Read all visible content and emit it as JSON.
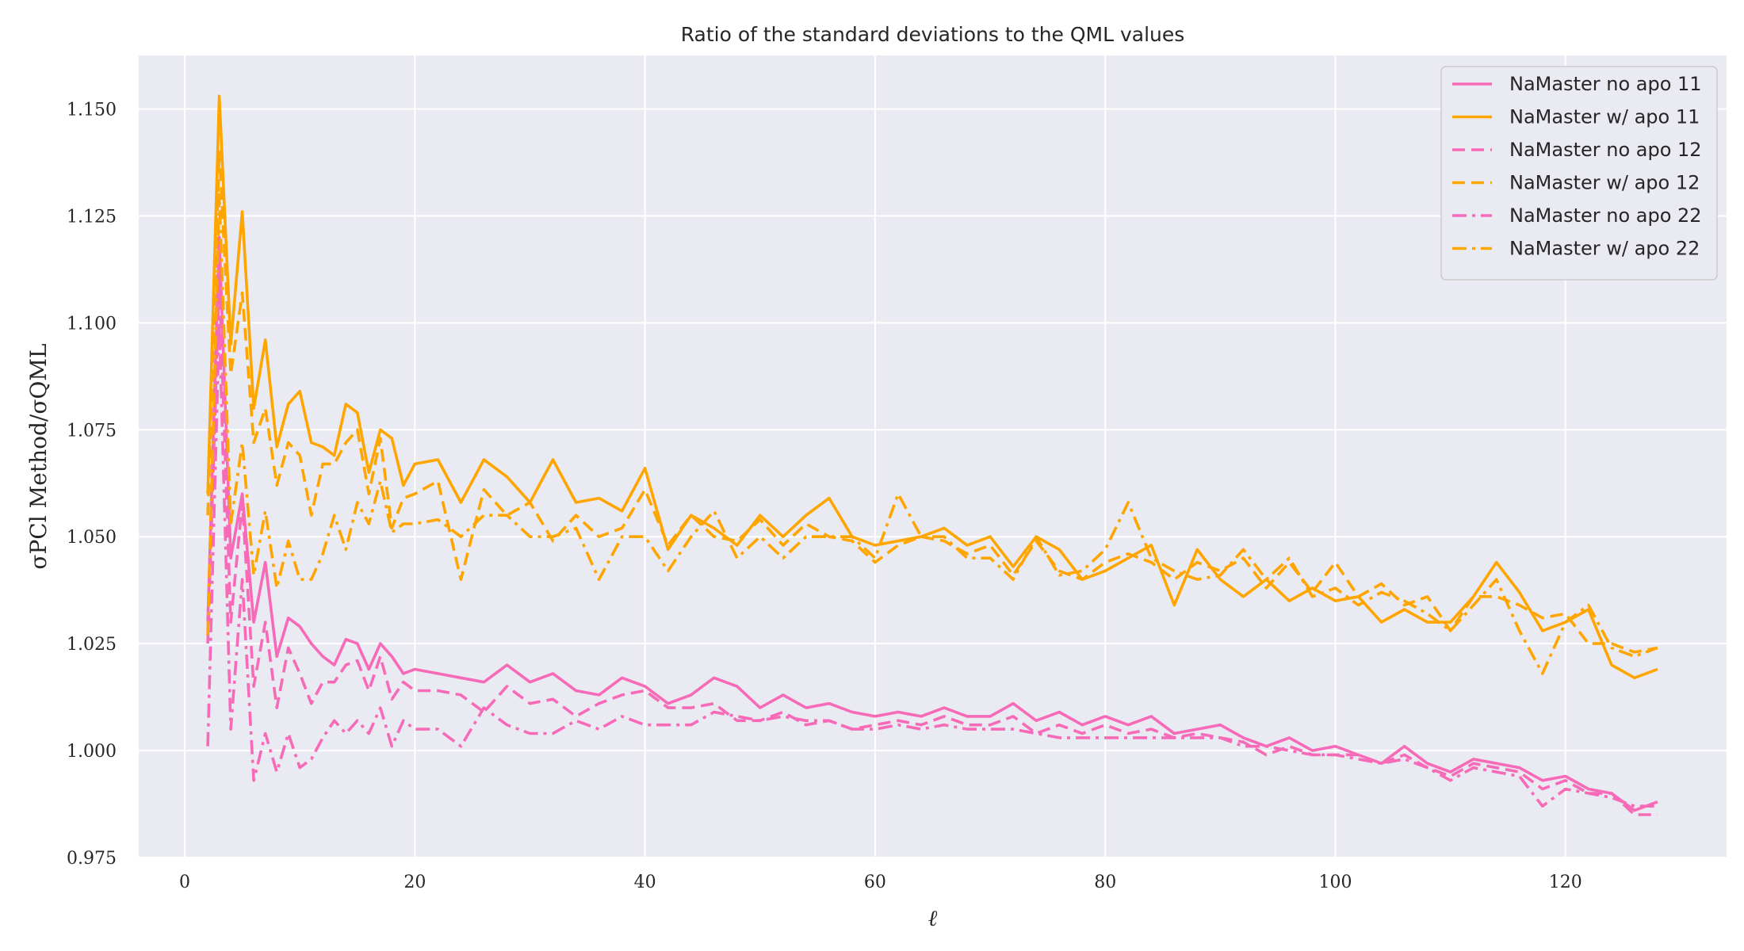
{
  "chart_data": {
    "type": "line",
    "title": "Ratio of the standard deviations to the QML values",
    "xlabel": "ℓ",
    "ylabel": "σPCl Method/σQML",
    "xlim": [
      -4,
      134
    ],
    "ylim": [
      0.975,
      1.1625
    ],
    "xticks": [
      0,
      20,
      40,
      60,
      80,
      100,
      120
    ],
    "yticks": [
      0.975,
      1.0,
      1.025,
      1.05,
      1.075,
      1.1,
      1.125,
      1.15
    ],
    "ytick_labels": [
      "0.975",
      "1.000",
      "1.025",
      "1.050",
      "1.075",
      "1.100",
      "1.125",
      "1.150"
    ],
    "grid": true,
    "legend_position": "top-right",
    "background": "#eaeaf2",
    "colors": {
      "pink": "#f76ab8",
      "orange": "#ffa500"
    },
    "series": [
      {
        "name": "NaMaster no apo 11",
        "color": "#f76ab8",
        "dash": "solid",
        "x": [
          2,
          3,
          4,
          5,
          6,
          7,
          8,
          9,
          10,
          11,
          12,
          13,
          14,
          15,
          16,
          17,
          18,
          19,
          20,
          22,
          24,
          26,
          28,
          30,
          32,
          34,
          36,
          38,
          40,
          42,
          44,
          46,
          48,
          50,
          52,
          54,
          56,
          58,
          60,
          62,
          64,
          66,
          68,
          70,
          72,
          74,
          76,
          78,
          80,
          82,
          84,
          86,
          88,
          90,
          92,
          94,
          96,
          98,
          100,
          102,
          104,
          106,
          108,
          110,
          112,
          114,
          116,
          118,
          120,
          122,
          124,
          126,
          128
        ],
        "y": [
          1.03,
          1.12,
          1.045,
          1.06,
          1.03,
          1.044,
          1.022,
          1.031,
          1.029,
          1.025,
          1.022,
          1.02,
          1.026,
          1.025,
          1.019,
          1.025,
          1.022,
          1.018,
          1.019,
          1.018,
          1.017,
          1.016,
          1.02,
          1.016,
          1.018,
          1.014,
          1.013,
          1.017,
          1.015,
          1.011,
          1.013,
          1.017,
          1.015,
          1.01,
          1.013,
          1.01,
          1.011,
          1.009,
          1.008,
          1.009,
          1.008,
          1.01,
          1.008,
          1.008,
          1.011,
          1.007,
          1.009,
          1.006,
          1.008,
          1.006,
          1.008,
          1.004,
          1.005,
          1.006,
          1.003,
          1.001,
          1.003,
          1.0,
          1.001,
          0.999,
          0.997,
          1.001,
          0.997,
          0.995,
          0.998,
          0.997,
          0.996,
          0.993,
          0.994,
          0.991,
          0.99,
          0.986,
          0.988
        ]
      },
      {
        "name": "NaMaster w/ apo 11",
        "color": "#ffa500",
        "dash": "solid",
        "x": [
          2,
          3,
          4,
          5,
          6,
          7,
          8,
          9,
          10,
          11,
          12,
          13,
          14,
          15,
          16,
          17,
          18,
          19,
          20,
          22,
          24,
          26,
          28,
          30,
          32,
          34,
          36,
          38,
          40,
          42,
          44,
          46,
          48,
          50,
          52,
          54,
          56,
          58,
          60,
          62,
          64,
          66,
          68,
          70,
          72,
          74,
          76,
          78,
          80,
          82,
          84,
          86,
          88,
          90,
          92,
          94,
          96,
          98,
          100,
          102,
          104,
          106,
          108,
          110,
          112,
          114,
          116,
          118,
          120,
          122,
          124,
          126,
          128
        ],
        "y": [
          1.06,
          1.153,
          1.095,
          1.126,
          1.08,
          1.096,
          1.071,
          1.081,
          1.084,
          1.072,
          1.071,
          1.069,
          1.081,
          1.079,
          1.065,
          1.075,
          1.073,
          1.062,
          1.067,
          1.068,
          1.058,
          1.068,
          1.064,
          1.058,
          1.068,
          1.058,
          1.059,
          1.056,
          1.066,
          1.047,
          1.055,
          1.052,
          1.048,
          1.055,
          1.05,
          1.055,
          1.059,
          1.05,
          1.048,
          1.049,
          1.05,
          1.052,
          1.048,
          1.05,
          1.043,
          1.05,
          1.047,
          1.04,
          1.042,
          1.045,
          1.048,
          1.034,
          1.047,
          1.04,
          1.036,
          1.04,
          1.035,
          1.038,
          1.035,
          1.036,
          1.03,
          1.033,
          1.03,
          1.03,
          1.036,
          1.044,
          1.037,
          1.028,
          1.03,
          1.033,
          1.02,
          1.017,
          1.019
        ]
      },
      {
        "name": "NaMaster no apo 12",
        "color": "#f76ab8",
        "dash": "dashed",
        "x": [
          2,
          3,
          4,
          5,
          6,
          7,
          8,
          9,
          10,
          11,
          12,
          13,
          14,
          15,
          16,
          17,
          18,
          19,
          20,
          22,
          24,
          26,
          28,
          30,
          32,
          34,
          36,
          38,
          40,
          42,
          44,
          46,
          48,
          50,
          52,
          54,
          56,
          58,
          60,
          62,
          64,
          66,
          68,
          70,
          72,
          74,
          76,
          78,
          80,
          82,
          84,
          86,
          88,
          90,
          92,
          94,
          96,
          98,
          100,
          102,
          104,
          106,
          108,
          110,
          112,
          114,
          116,
          118,
          120,
          122,
          124,
          126,
          128
        ],
        "y": [
          1.025,
          1.11,
          1.03,
          1.058,
          1.015,
          1.03,
          1.01,
          1.024,
          1.018,
          1.011,
          1.016,
          1.016,
          1.02,
          1.021,
          1.014,
          1.022,
          1.012,
          1.016,
          1.014,
          1.014,
          1.013,
          1.009,
          1.015,
          1.011,
          1.012,
          1.008,
          1.011,
          1.013,
          1.014,
          1.01,
          1.01,
          1.011,
          1.007,
          1.007,
          1.009,
          1.006,
          1.007,
          1.005,
          1.006,
          1.007,
          1.006,
          1.008,
          1.006,
          1.006,
          1.008,
          1.004,
          1.006,
          1.004,
          1.006,
          1.004,
          1.005,
          1.003,
          1.004,
          1.003,
          1.002,
          0.999,
          1.001,
          0.999,
          0.999,
          0.999,
          0.997,
          0.999,
          0.996,
          0.994,
          0.997,
          0.996,
          0.995,
          0.991,
          0.993,
          0.99,
          0.99,
          0.985,
          0.985
        ]
      },
      {
        "name": "NaMaster w/ apo 12",
        "color": "#ffa500",
        "dash": "dashed",
        "x": [
          2,
          3,
          4,
          5,
          6,
          7,
          8,
          9,
          10,
          11,
          12,
          13,
          14,
          15,
          16,
          17,
          18,
          19,
          20,
          22,
          24,
          26,
          28,
          30,
          32,
          34,
          36,
          38,
          40,
          42,
          44,
          46,
          48,
          50,
          52,
          54,
          56,
          58,
          60,
          62,
          64,
          66,
          68,
          70,
          72,
          74,
          76,
          78,
          80,
          82,
          84,
          86,
          88,
          90,
          92,
          94,
          96,
          98,
          100,
          102,
          104,
          106,
          108,
          110,
          112,
          114,
          116,
          118,
          120,
          122,
          124,
          126,
          128
        ],
        "y": [
          1.055,
          1.14,
          1.088,
          1.107,
          1.072,
          1.08,
          1.062,
          1.072,
          1.069,
          1.055,
          1.067,
          1.067,
          1.072,
          1.075,
          1.06,
          1.073,
          1.052,
          1.059,
          1.06,
          1.063,
          1.04,
          1.061,
          1.055,
          1.058,
          1.049,
          1.055,
          1.05,
          1.052,
          1.061,
          1.048,
          1.055,
          1.05,
          1.049,
          1.054,
          1.048,
          1.053,
          1.05,
          1.049,
          1.044,
          1.048,
          1.05,
          1.049,
          1.046,
          1.048,
          1.041,
          1.049,
          1.042,
          1.04,
          1.044,
          1.046,
          1.044,
          1.04,
          1.044,
          1.042,
          1.045,
          1.038,
          1.044,
          1.037,
          1.044,
          1.036,
          1.039,
          1.034,
          1.036,
          1.028,
          1.036,
          1.036,
          1.034,
          1.031,
          1.032,
          1.025,
          1.025,
          1.023,
          1.024
        ]
      },
      {
        "name": "NaMaster no apo 22",
        "color": "#f76ab8",
        "dash": "dashdot",
        "x": [
          2,
          3,
          4,
          5,
          6,
          7,
          8,
          9,
          10,
          11,
          12,
          13,
          14,
          15,
          16,
          17,
          18,
          19,
          20,
          22,
          24,
          26,
          28,
          30,
          32,
          34,
          36,
          38,
          40,
          42,
          44,
          46,
          48,
          50,
          52,
          54,
          56,
          58,
          60,
          62,
          64,
          66,
          68,
          70,
          72,
          74,
          76,
          78,
          80,
          82,
          84,
          86,
          88,
          90,
          92,
          94,
          96,
          98,
          100,
          102,
          104,
          106,
          108,
          110,
          112,
          114,
          116,
          118,
          120,
          122,
          124,
          126,
          128
        ],
        "y": [
          1.001,
          1.1,
          1.005,
          1.04,
          0.993,
          1.004,
          0.995,
          1.004,
          0.996,
          0.998,
          1.003,
          1.007,
          1.004,
          1.007,
          1.004,
          1.01,
          1.001,
          1.007,
          1.005,
          1.005,
          1.001,
          1.01,
          1.006,
          1.004,
          1.004,
          1.007,
          1.005,
          1.008,
          1.006,
          1.006,
          1.006,
          1.009,
          1.008,
          1.007,
          1.008,
          1.007,
          1.007,
          1.005,
          1.005,
          1.006,
          1.005,
          1.006,
          1.005,
          1.005,
          1.005,
          1.004,
          1.003,
          1.003,
          1.003,
          1.003,
          1.003,
          1.003,
          1.003,
          1.003,
          1.001,
          1.001,
          1.0,
          0.999,
          0.999,
          0.998,
          0.997,
          0.998,
          0.996,
          0.993,
          0.996,
          0.995,
          0.994,
          0.987,
          0.991,
          0.99,
          0.989,
          0.987,
          0.987
        ]
      },
      {
        "name": "NaMaster w/ apo 22",
        "color": "#ffa500",
        "dash": "dashdot",
        "x": [
          2,
          3,
          4,
          5,
          6,
          7,
          8,
          9,
          10,
          11,
          12,
          13,
          14,
          15,
          16,
          17,
          18,
          19,
          20,
          22,
          24,
          26,
          28,
          30,
          32,
          34,
          36,
          38,
          40,
          42,
          44,
          46,
          48,
          50,
          52,
          54,
          56,
          58,
          60,
          62,
          64,
          66,
          68,
          70,
          72,
          74,
          76,
          78,
          80,
          82,
          84,
          86,
          88,
          90,
          92,
          94,
          96,
          98,
          100,
          102,
          104,
          106,
          108,
          110,
          112,
          114,
          116,
          118,
          120,
          122,
          124,
          126,
          128
        ],
        "y": [
          1.027,
          1.13,
          1.053,
          1.072,
          1.041,
          1.056,
          1.038,
          1.049,
          1.04,
          1.04,
          1.046,
          1.055,
          1.047,
          1.058,
          1.053,
          1.063,
          1.051,
          1.053,
          1.053,
          1.054,
          1.05,
          1.055,
          1.055,
          1.05,
          1.05,
          1.052,
          1.04,
          1.05,
          1.05,
          1.042,
          1.05,
          1.056,
          1.045,
          1.05,
          1.045,
          1.05,
          1.05,
          1.05,
          1.045,
          1.06,
          1.05,
          1.05,
          1.045,
          1.045,
          1.04,
          1.05,
          1.041,
          1.042,
          1.047,
          1.058,
          1.045,
          1.042,
          1.04,
          1.041,
          1.047,
          1.04,
          1.045,
          1.036,
          1.038,
          1.034,
          1.037,
          1.035,
          1.032,
          1.028,
          1.034,
          1.04,
          1.028,
          1.018,
          1.03,
          1.034,
          1.024,
          1.022,
          1.024
        ]
      }
    ]
  }
}
